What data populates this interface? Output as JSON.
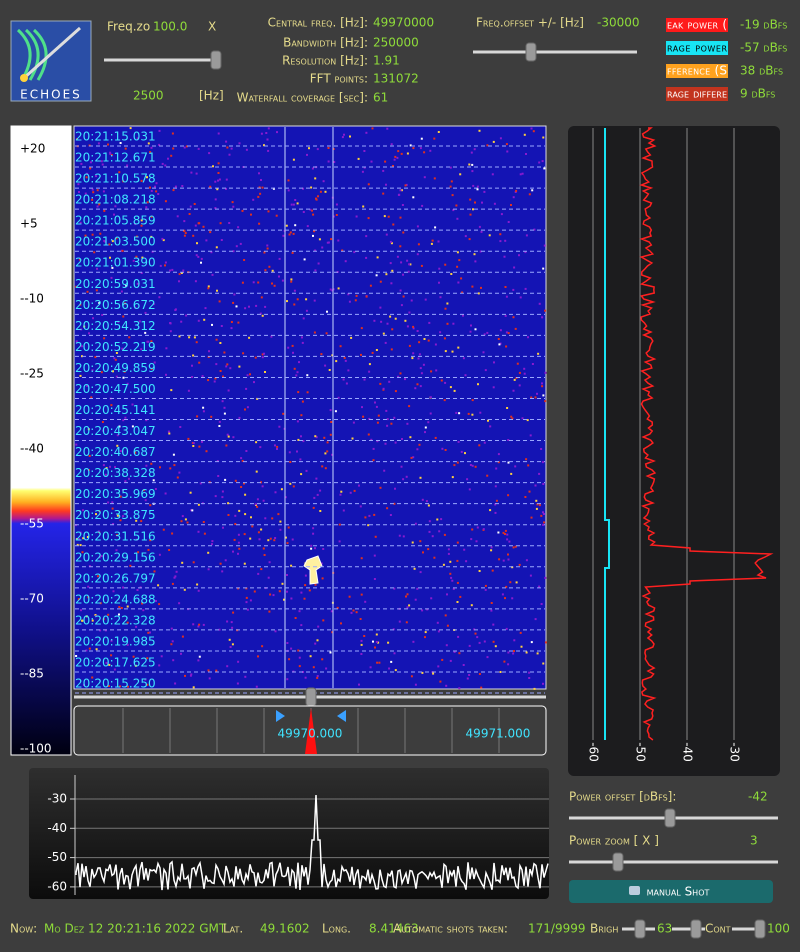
{
  "header": {
    "logo": "ECHOES",
    "freq_zoom": {
      "label": "Freq.zo",
      "value": "100.0",
      "unit": "X",
      "span": 2500,
      "span_unit": "[Hz]"
    },
    "params": [
      {
        "label": "Central freq. [Hz]:",
        "value": 49970000
      },
      {
        "label": "Bandwidth [Hz]:",
        "value": 250000
      },
      {
        "label": "Resolution [Hz]:",
        "value": 1.91
      },
      {
        "label": "FFT points:",
        "value": 131072
      },
      {
        "label": "Waterfall coverage [sec]:",
        "value": 61
      }
    ],
    "freq_offset": {
      "label": "Freq.offset +/- [Hz]",
      "value": -30000
    },
    "legend": [
      {
        "label": "eak power (",
        "value": "-19 dBfs",
        "color": "#ff1a1a"
      },
      {
        "label": "rage power",
        "value": "-57 dBfs",
        "color": "#18e4f4"
      },
      {
        "label": "fference (S",
        "value": "38 dBfs",
        "color": "#ffa21e"
      },
      {
        "label": "rage differe",
        "value": "9 dBfs",
        "color": "#c2341e"
      }
    ]
  },
  "colorbar": {
    "labels": [
      "+20",
      "+5",
      "--10",
      "--25",
      "--40",
      "--55",
      "--70",
      "--85",
      "--100"
    ]
  },
  "waterfall": {
    "timestamps": [
      "20:21:15.031",
      "20:21:12.671",
      "20:21:10.578",
      "20:21:08.218",
      "20:21:05.859",
      "20:21:03.500",
      "20:21:01.390",
      "20:20:59.031",
      "20:20:56.672",
      "20:20:54.312",
      "20:20:52.219",
      "20:20:49.859",
      "20:20:47.500",
      "20:20:45.141",
      "20:20:43.047",
      "20:20:40.687",
      "20:20:38.328",
      "20:20:35.969",
      "20:20:33.875",
      "20:20:31.516",
      "20:20:29.156",
      "20:20:26.797",
      "20:20:24.688",
      "20:20:22.328",
      "20:20:19.985",
      "20:20:17.625",
      "20:20:15.250"
    ],
    "freq_labels": [
      "49970.000",
      "49971.000"
    ]
  },
  "power_plot": {
    "ticks": [
      -60,
      -50,
      -40,
      -30
    ]
  },
  "spectrum": {
    "ticks": [
      -30,
      -40,
      -50,
      -60
    ]
  },
  "controls": {
    "power_offset": {
      "label": "Power offset [dBfs]:",
      "value": -42
    },
    "power_zoom": {
      "label": "Power zoom [ X ]",
      "value": 3
    },
    "button": "manual Shot"
  },
  "status": {
    "now_label": "Now:",
    "now": "Mo Dez 12 20:21:16 2022 GMT",
    "lat_label": "Lat.",
    "lat": 49.1602,
    "long_label": "Long.",
    "long": 8.41463,
    "shots_label": "Automatic shots taken:",
    "shots": "171/9999",
    "bright_label": "Brigh",
    "bright": 63,
    "contrast_label": "Cont",
    "contrast": 100
  }
}
